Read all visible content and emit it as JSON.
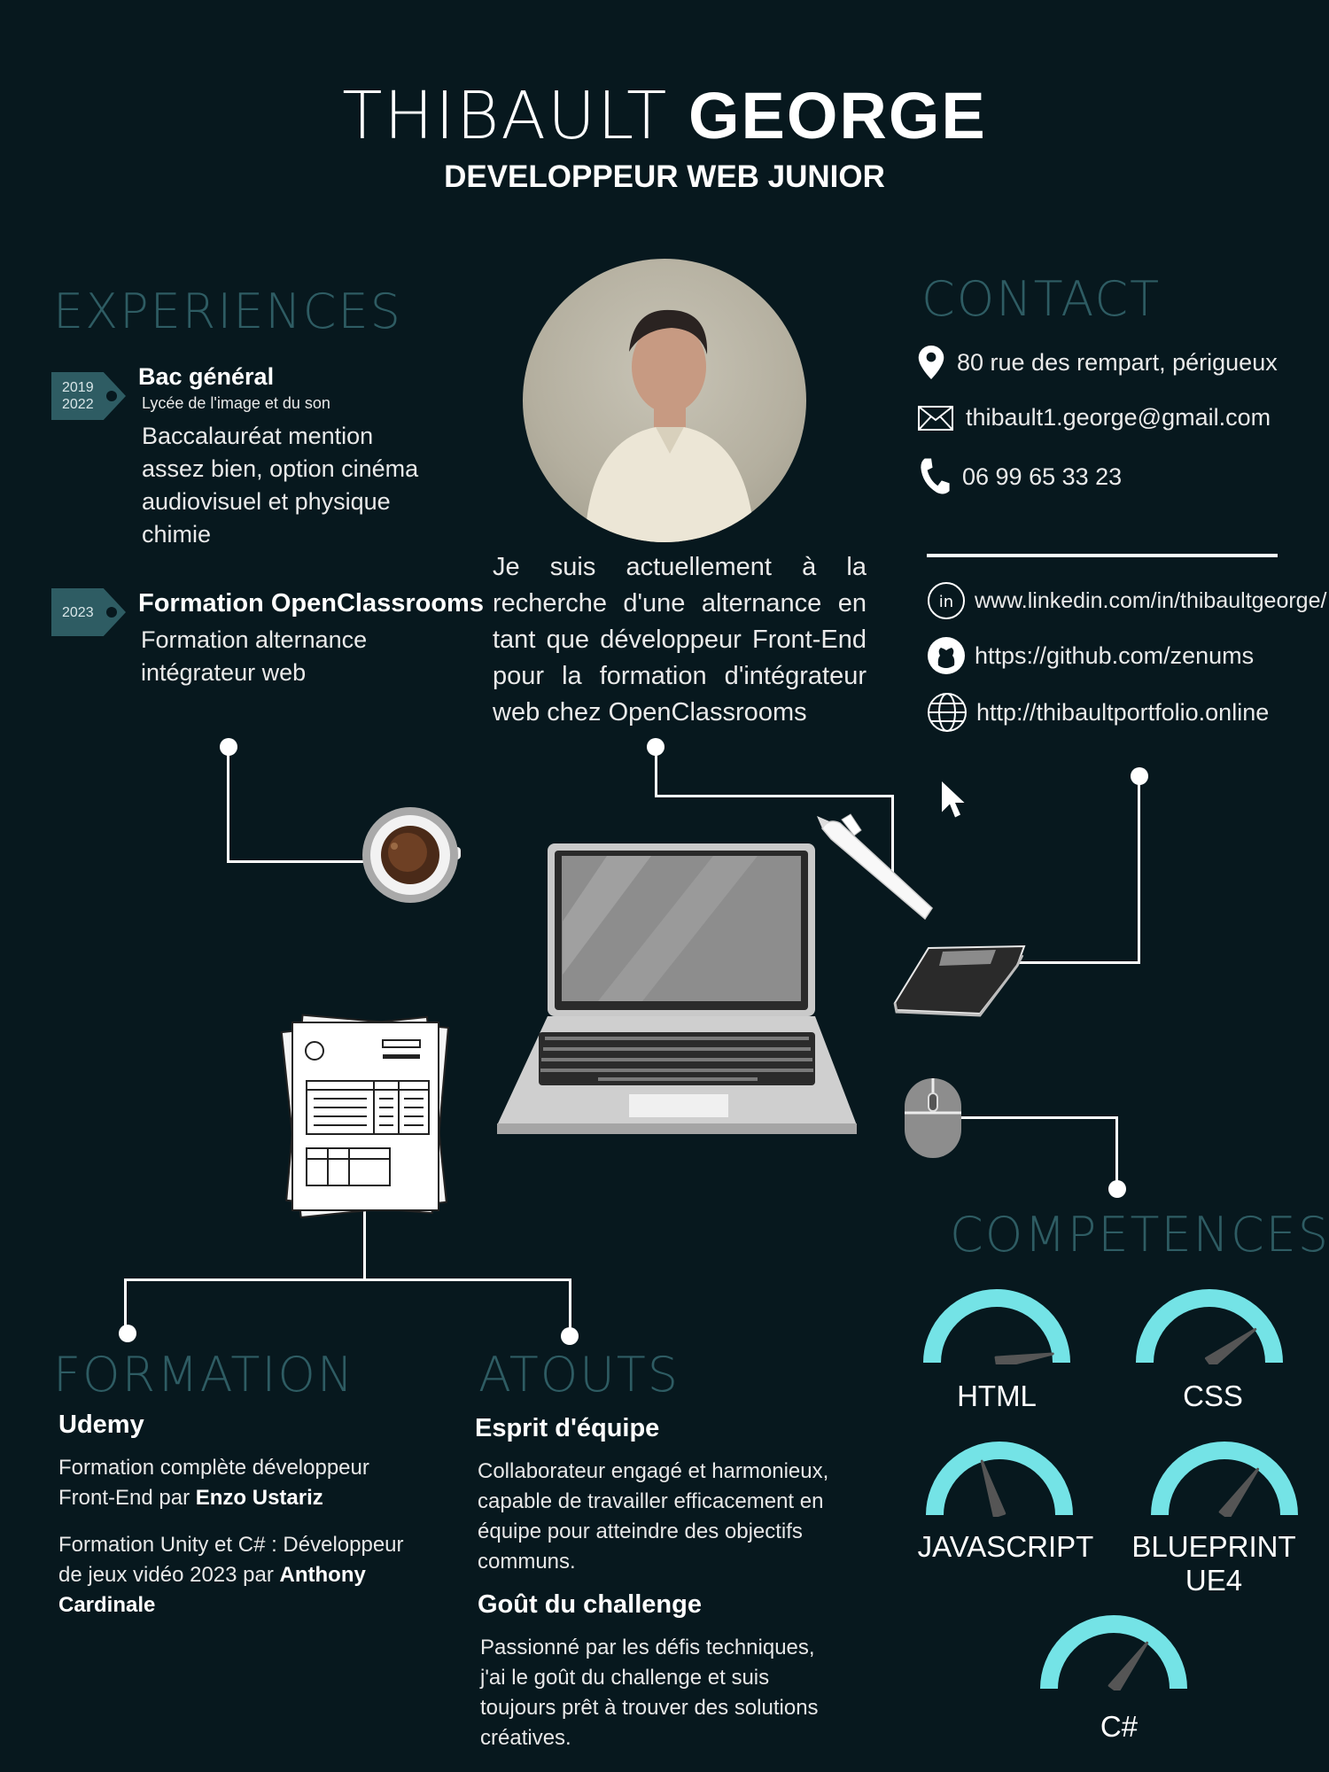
{
  "header": {
    "first_name": "THIBAULT",
    "last_name": "GEORGE",
    "job_title": "DEVELOPPEUR WEB JUNIOR"
  },
  "experiences": {
    "title": "EXPERIENCES",
    "items": [
      {
        "years": [
          "2019",
          "2022"
        ],
        "title": "Bac général",
        "subtitle": "Lycée de l'image et du son",
        "description": [
          "Baccalauréat mention",
          "assez bien, option cinéma",
          "audiovisuel et physique",
          "chimie"
        ]
      },
      {
        "years": [
          "2023"
        ],
        "title": "Formation OpenClassrooms",
        "description": [
          "Formation alternance",
          "intégrateur web"
        ]
      }
    ]
  },
  "about": {
    "lines": [
      "Je suis actuellement à la",
      "recherche d'une alternance en",
      "tant que développeur Front-End",
      "pour la formation d'intégrateur",
      "web chez OpenClassrooms"
    ]
  },
  "contact": {
    "title": "CONTACT",
    "address": "80 rue des rempart, périgueux",
    "email": "thibault1.george@gmail.com",
    "phone": "06 99 65 33 23",
    "linkedin": "www.linkedin.com/in/thibaultgeorge/",
    "github": "https://github.com/zenums",
    "portfolio": "http://thibaultportfolio.online"
  },
  "formation": {
    "title": "FORMATION",
    "school": "Udemy",
    "items": [
      {
        "text": [
          "Formation complète développeur",
          "Front-End par "
        ],
        "author": "Enzo Ustariz"
      },
      {
        "text": [
          "Formation Unity et C# : Développeur",
          "de jeux vidéo 2023 par "
        ],
        "author_line1": "Anthony",
        "author_line2": "Cardinale"
      }
    ]
  },
  "atouts": {
    "title": "ATOUTS",
    "items": [
      {
        "title": "Esprit d'équipe",
        "lines": [
          "Collaborateur engagé et harmonieux,",
          "capable de travailler efficacement en",
          "équipe pour atteindre des objectifs",
          "communs."
        ]
      },
      {
        "title": "Goût du challenge",
        "lines": [
          "Passionné par les défis techniques,",
          "j'ai le goût du challenge et suis",
          "toujours prêt à trouver des solutions",
          "créatives."
        ]
      }
    ]
  },
  "competences": {
    "title": "COMPETENCES",
    "skills": [
      {
        "name": "HTML",
        "level": 0.95
      },
      {
        "name": "CSS",
        "level": 0.8
      },
      {
        "name": "JAVASCRIPT",
        "level": 0.4
      },
      {
        "name": "BLUEPRINT UE4",
        "level": 0.7
      },
      {
        "name": "C#",
        "level": 0.7
      }
    ]
  },
  "colors": {
    "background": "#07181e",
    "teal_title": "#2e5c63",
    "gauge": "#74e3e6",
    "needle": "#555555"
  }
}
